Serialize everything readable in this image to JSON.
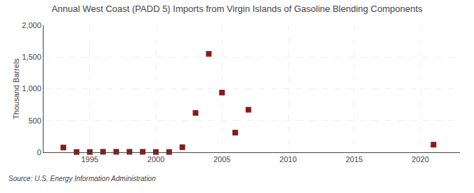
{
  "chart_data": {
    "type": "scatter",
    "title": "Annual West Coast (PADD 5) Imports from Virgin Islands of Gasoline Blending Components",
    "ylabel": "Thousand Barrels",
    "annotations": [
      "Source: U.S. Energy Information Administration"
    ],
    "x": [
      1993,
      1994,
      1995,
      1996,
      1997,
      1998,
      1999,
      2000,
      2001,
      2002,
      2003,
      2004,
      2005,
      2006,
      2007,
      2021
    ],
    "values": [
      75,
      5,
      5,
      8,
      8,
      8,
      8,
      5,
      5,
      80,
      620,
      1550,
      940,
      310,
      670,
      120
    ],
    "color": "#8b1a1a",
    "marker": "square",
    "xlim": [
      1991.5,
      2023
    ],
    "ylim": [
      0,
      2000
    ],
    "xticks": [
      1995,
      2000,
      2005,
      2010,
      2015,
      2020
    ],
    "yticks": [
      0,
      500,
      {
        "value": 1000,
        "label": "1,000"
      },
      {
        "value": 1500,
        "label": "1,500"
      },
      {
        "value": 2000,
        "label": "2,000"
      }
    ],
    "grid": true
  }
}
